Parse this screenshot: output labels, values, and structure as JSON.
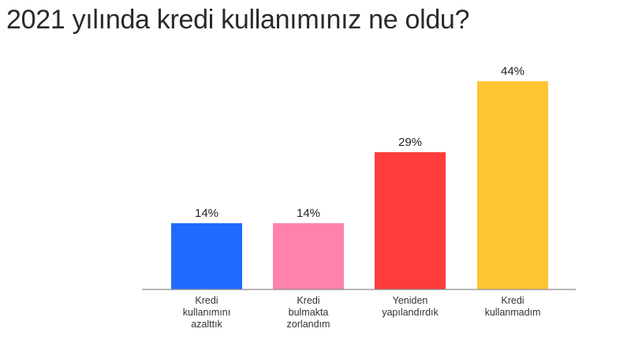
{
  "page": {
    "title": "2021 yılında kredi kullanımınız ne oldu?"
  },
  "chart_data": {
    "type": "bar",
    "categories": [
      [
        "Kredi",
        "kullanımını",
        "azalttık"
      ],
      [
        "Kredi",
        "bulmakta",
        "zorlandım"
      ],
      [
        "Yeniden",
        "yapılandırdık"
      ],
      [
        "Kredi",
        "kullanmadım"
      ]
    ],
    "values": [
      14,
      14,
      29,
      44
    ],
    "data_labels": [
      "14%",
      "14%",
      "29%",
      "44%"
    ],
    "colors": [
      "#1f6bff",
      "#ff82ad",
      "#ff3b3b",
      "#ffc533"
    ],
    "ylim": [
      0,
      44
    ],
    "grid": false,
    "legend": "none"
  }
}
